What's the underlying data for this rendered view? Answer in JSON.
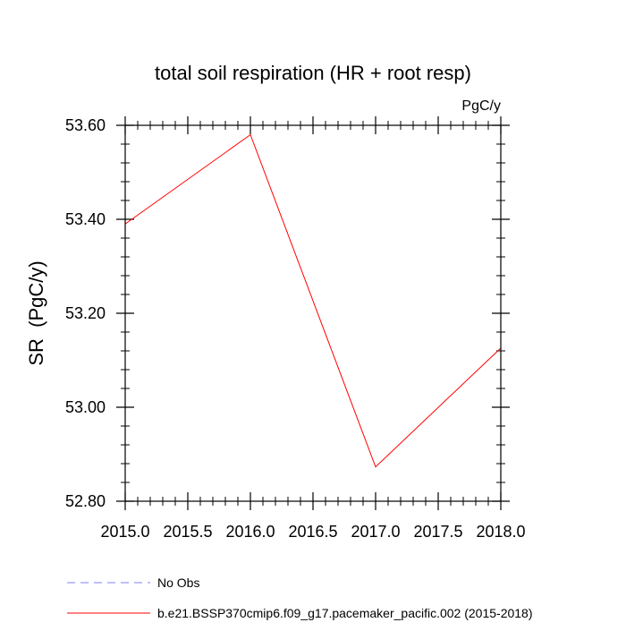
{
  "chart_data": {
    "type": "line",
    "title": "total soil respiration (HR + root resp)",
    "units_label": "PgC/y",
    "xlabel": "",
    "ylabel": "SR  (PgC/y)",
    "xlim": [
      2015.0,
      2018.0
    ],
    "ylim": [
      52.8,
      53.6
    ],
    "x_ticks": [
      2015.0,
      2015.5,
      2016.0,
      2016.5,
      2017.0,
      2017.5,
      2018.0
    ],
    "x_tick_labels": [
      "2015.0",
      "2015.5",
      "2016.0",
      "2016.5",
      "2017.0",
      "2017.5",
      "2018.0"
    ],
    "y_ticks": [
      52.8,
      53.0,
      53.2,
      53.4,
      53.6
    ],
    "y_tick_labels": [
      "52.80",
      "53.00",
      "53.20",
      "53.40",
      "53.60"
    ],
    "x_minor_step": 0.1,
    "y_minor_step": 0.04,
    "grid": false,
    "series": [
      {
        "name": "b.e21.BSSP370cmip6.f09_g17.pacemaker_pacific.002 (2015-2018)",
        "color": "#ff0000",
        "style": "solid",
        "x": [
          2015.0,
          2016.0,
          2017.0,
          2018.0
        ],
        "values": [
          53.39,
          53.58,
          52.873,
          53.126
        ]
      }
    ],
    "legend": [
      {
        "label": "No Obs",
        "color": "#8080ff",
        "style": "dashed"
      },
      {
        "label": "b.e21.BSSP370cmip6.f09_g17.pacemaker_pacific.002 (2015-2018)",
        "color": "#ff0000",
        "style": "solid"
      }
    ],
    "legend_position": "bottom-left"
  }
}
